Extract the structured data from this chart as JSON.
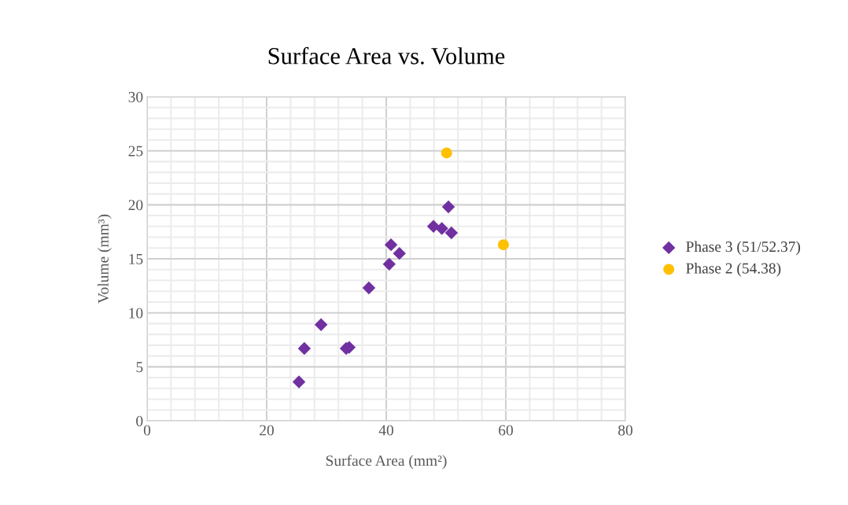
{
  "chart_data": {
    "type": "scatter",
    "title": "Surface Area vs. Volume",
    "xlabel": "Surface Area (mm²)",
    "ylabel": "Volume (mm³)",
    "xlim": [
      0,
      80
    ],
    "xticks": [
      0,
      20,
      40,
      60,
      80
    ],
    "ylim": [
      0,
      30
    ],
    "yticks": [
      0,
      5,
      10,
      15,
      20,
      25,
      30
    ],
    "grid": true,
    "legend": "right",
    "series": [
      {
        "name": "Phase 3 (51/52.37)",
        "color": "#7030a0",
        "marker": "diamond",
        "x": [
          25.4,
          26.3,
          29.1,
          33.3,
          33.8,
          37.1,
          40.5,
          40.8,
          42.2,
          47.9,
          49.3,
          50.9,
          50.4
        ],
        "values": [
          3.6,
          6.7,
          8.9,
          6.7,
          6.8,
          12.3,
          14.5,
          16.3,
          15.5,
          18.0,
          17.8,
          17.4,
          19.8
        ]
      },
      {
        "name": "Phase 2 (54.38)",
        "color": "#ffc000",
        "marker": "circle",
        "x": [
          50.1,
          59.6
        ],
        "values": [
          24.8,
          16.3
        ]
      }
    ]
  }
}
